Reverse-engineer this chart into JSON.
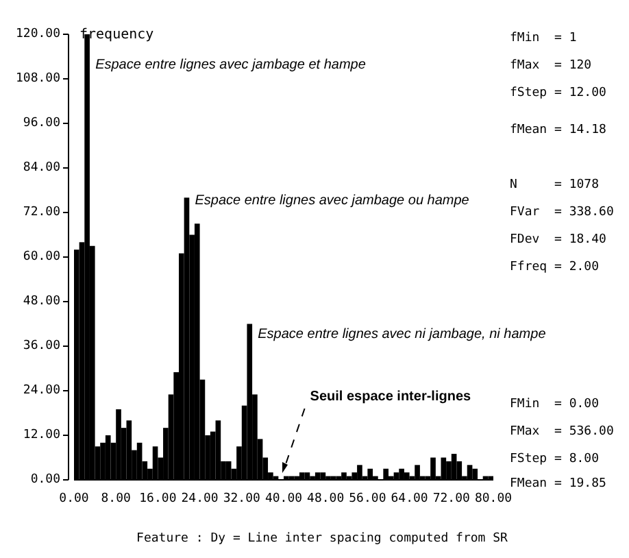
{
  "chart_data": {
    "type": "histogram",
    "ylabel": "frequency",
    "xlabel": "Feature : Dy = Line inter spacing computed from SR",
    "bins": [
      0,
      1,
      2,
      3,
      4,
      5,
      6,
      7,
      8,
      9,
      10,
      11,
      12,
      13,
      14,
      15,
      16,
      17,
      18,
      19,
      20,
      21,
      22,
      23,
      24,
      25,
      26,
      27,
      28,
      29,
      30,
      31,
      32,
      33,
      34,
      35,
      36,
      37,
      38,
      39,
      40,
      41,
      42,
      43,
      44,
      45,
      46,
      47,
      48,
      49,
      50,
      51,
      52,
      53,
      54,
      55,
      56,
      57,
      58,
      59,
      60,
      61,
      62,
      63,
      64,
      65,
      66,
      67,
      68,
      69,
      70,
      71,
      72,
      73,
      74,
      75,
      76,
      77,
      78,
      79,
      80
    ],
    "values": [
      62,
      64,
      120,
      63,
      9,
      10,
      12,
      10,
      19,
      14,
      16,
      8,
      10,
      5,
      3,
      9,
      6,
      14,
      23,
      29,
      61,
      76,
      66,
      69,
      27,
      12,
      13,
      16,
      5,
      5,
      3,
      9,
      20,
      42,
      23,
      11,
      6,
      2,
      1,
      0,
      1,
      1,
      1,
      2,
      2,
      1,
      2,
      2,
      1,
      1,
      1,
      2,
      1,
      2,
      4,
      1,
      3,
      1,
      0,
      3,
      1,
      2,
      3,
      2,
      1,
      4,
      1,
      1,
      6,
      1,
      6,
      5,
      7,
      5,
      1,
      4,
      3,
      0,
      1,
      1
    ],
    "color": "#000000",
    "xlim": [
      0,
      80
    ],
    "xticks": [
      {
        "value": 0,
        "label": "0.00"
      },
      {
        "value": 8,
        "label": "8.00"
      },
      {
        "value": 16,
        "label": "16.00"
      },
      {
        "value": 24,
        "label": "24.00"
      },
      {
        "value": 32,
        "label": "32.00"
      },
      {
        "value": 40,
        "label": "40.00"
      },
      {
        "value": 48,
        "label": "48.00"
      },
      {
        "value": 56,
        "label": "56.00"
      },
      {
        "value": 64,
        "label": "64.00"
      },
      {
        "value": 72,
        "label": "72.00"
      },
      {
        "value": 80,
        "label": "80.00"
      }
    ],
    "ylim": [
      0,
      120
    ],
    "yticks": [
      {
        "value": 0,
        "label": "0.00"
      },
      {
        "value": 12,
        "label": "12.00"
      },
      {
        "value": 24,
        "label": "24.00"
      },
      {
        "value": 36,
        "label": "36.00"
      },
      {
        "value": 48,
        "label": "48.00"
      },
      {
        "value": 60,
        "label": "60.00"
      },
      {
        "value": 72,
        "label": "72.00"
      },
      {
        "value": 84,
        "label": "84.00"
      },
      {
        "value": 96,
        "label": "96.00"
      },
      {
        "value": 108,
        "label": "108.00"
      },
      {
        "value": 120,
        "label": "120.00"
      }
    ],
    "annotations": [
      {
        "text": "Espace entre lignes avec jambage et hampe",
        "x": 2.5,
        "y": 120
      },
      {
        "text": "Espace entre lignes avec jambage ou hampe",
        "x": 21.5,
        "y": 76
      },
      {
        "text": "Espace entre lignes avec ni jambage, ni hampe",
        "x": 33.5,
        "y": 42
      },
      "Seuil espace inter-lignes",
      "fMin  = 1",
      "fMax  = 120",
      "fStep = 12.00",
      "fMean = 14.18",
      "N     = 1078",
      "FVar  = 338.60",
      "FDev  = 18.40",
      "Ffreq = 2.00",
      "FMin  = 0.00",
      "FMax  = 536.00",
      "FStep = 8.00",
      "FMean = 19.85"
    ]
  }
}
